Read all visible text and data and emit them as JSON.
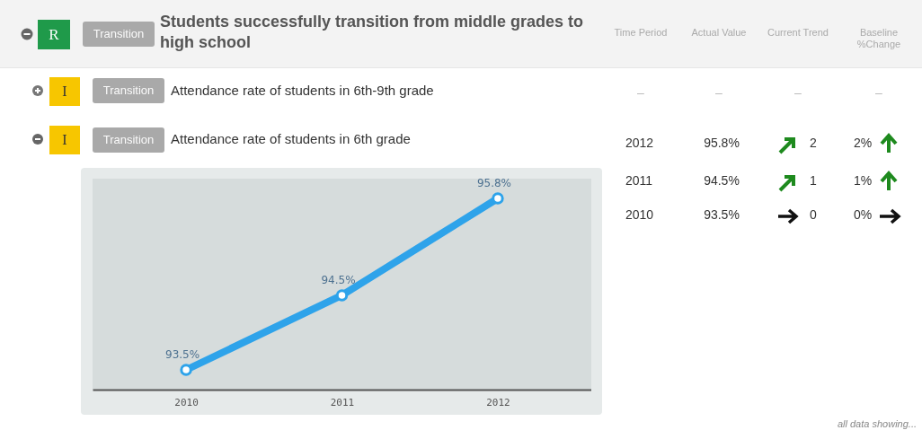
{
  "chart_data": {
    "type": "line",
    "title": "Students successfully transition from middle grades to high school",
    "categories": [
      "2010",
      "2011",
      "2012"
    ],
    "series": [
      {
        "color": "#2ea3ea",
        "values": [
          93.5,
          94.5,
          95.8
        ],
        "value_labels": [
          "93.5%",
          "94.5%",
          "95.8%"
        ]
      }
    ],
    "tick_labels": "x",
    "grid": false,
    "marker": "circle",
    "line_style": "solid",
    "annotations": [
      "R",
      "Transition",
      "Time Period",
      "Actual Value",
      "Current Trend",
      "Baseline %Change",
      "I",
      "Transition",
      "Attendance rate of students in 6th-9th grade",
      "–",
      "–",
      "–",
      "–",
      "I",
      "Transition",
      "Attendance rate of students in 6th grade",
      "2012",
      "95.8%",
      "2",
      "2%",
      "2011",
      "94.5%",
      "1",
      "1%",
      "2010",
      "93.5%",
      "0",
      "0%",
      "all data showing..."
    ]
  }
}
